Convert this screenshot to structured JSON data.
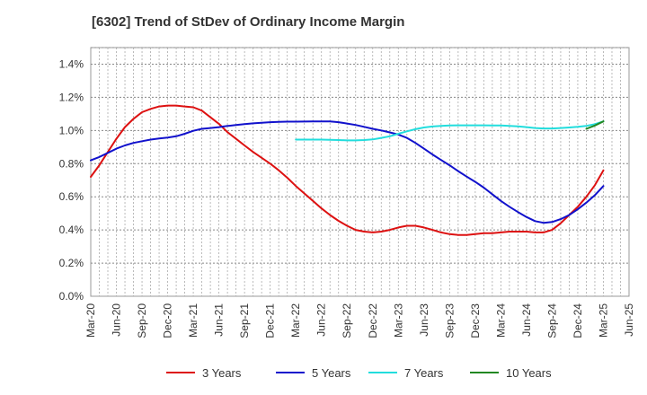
{
  "chart_data": {
    "type": "line",
    "title": "[6302]  Trend of StDev of Ordinary Income Margin",
    "xlabel": "",
    "ylabel": "",
    "x_ticks": [
      "Mar-20",
      "Jun-20",
      "Sep-20",
      "Dec-20",
      "Mar-21",
      "Jun-21",
      "Sep-21",
      "Dec-21",
      "Mar-22",
      "Jun-22",
      "Sep-22",
      "Dec-22",
      "Mar-23",
      "Jun-23",
      "Sep-23",
      "Dec-23",
      "Mar-24",
      "Jun-24",
      "Sep-24",
      "Dec-24",
      "Mar-25",
      "Jun-25"
    ],
    "y_ticks": [
      "0.0%",
      "0.2%",
      "0.4%",
      "0.6%",
      "0.8%",
      "1.0%",
      "1.2%",
      "1.4%"
    ],
    "ylim": [
      0,
      1.5
    ],
    "grid": true,
    "legend_position": "bottom",
    "series": [
      {
        "name": "3 Years",
        "color": "#dd1111",
        "x": [
          "Mar-20",
          "Apr-20",
          "May-20",
          "Jun-20",
          "Jul-20",
          "Aug-20",
          "Sep-20",
          "Oct-20",
          "Nov-20",
          "Dec-20",
          "Jan-21",
          "Feb-21",
          "Mar-21",
          "Apr-21",
          "May-21",
          "Jun-21",
          "Jul-21",
          "Aug-21",
          "Sep-21",
          "Oct-21",
          "Nov-21",
          "Dec-21",
          "Jan-22",
          "Feb-22",
          "Mar-22",
          "Apr-22",
          "May-22",
          "Jun-22",
          "Jul-22",
          "Aug-22",
          "Sep-22",
          "Oct-22",
          "Nov-22",
          "Dec-22",
          "Jan-23",
          "Feb-23",
          "Mar-23",
          "Apr-23",
          "May-23",
          "Jun-23",
          "Jul-23",
          "Aug-23",
          "Sep-23",
          "Oct-23",
          "Nov-23",
          "Dec-23",
          "Jan-24",
          "Feb-24",
          "Mar-24",
          "Apr-24",
          "May-24",
          "Jun-24",
          "Jul-24",
          "Aug-24",
          "Sep-24",
          "Oct-24",
          "Nov-24",
          "Dec-24",
          "Jan-25",
          "Feb-25",
          "Mar-25"
        ],
        "values": [
          0.72,
          0.79,
          0.87,
          0.95,
          1.02,
          1.07,
          1.11,
          1.13,
          1.145,
          1.15,
          1.15,
          1.145,
          1.14,
          1.12,
          1.08,
          1.04,
          0.99,
          0.95,
          0.91,
          0.87,
          0.835,
          0.8,
          0.76,
          0.715,
          0.665,
          0.62,
          0.575,
          0.53,
          0.49,
          0.455,
          0.425,
          0.4,
          0.39,
          0.385,
          0.39,
          0.4,
          0.415,
          0.425,
          0.425,
          0.415,
          0.4,
          0.385,
          0.375,
          0.37,
          0.37,
          0.375,
          0.38,
          0.38,
          0.385,
          0.39,
          0.39,
          0.39,
          0.385,
          0.385,
          0.4,
          0.44,
          0.49,
          0.54,
          0.6,
          0.67,
          0.76
        ]
      },
      {
        "name": "5 Years",
        "color": "#1111cc",
        "x": [
          "Mar-20",
          "Apr-20",
          "May-20",
          "Jun-20",
          "Jul-20",
          "Aug-20",
          "Sep-20",
          "Oct-20",
          "Nov-20",
          "Dec-20",
          "Jan-21",
          "Feb-21",
          "Mar-21",
          "Apr-21",
          "May-21",
          "Jun-21",
          "Jul-21",
          "Aug-21",
          "Sep-21",
          "Oct-21",
          "Nov-21",
          "Dec-21",
          "Jan-22",
          "Feb-22",
          "Mar-22",
          "Apr-22",
          "May-22",
          "Jun-22",
          "Jul-22",
          "Aug-22",
          "Sep-22",
          "Oct-22",
          "Nov-22",
          "Dec-22",
          "Jan-23",
          "Feb-23",
          "Mar-23",
          "Apr-23",
          "May-23",
          "Jun-23",
          "Jul-23",
          "Aug-23",
          "Sep-23",
          "Oct-23",
          "Nov-23",
          "Dec-23",
          "Jan-24",
          "Feb-24",
          "Mar-24",
          "Apr-24",
          "May-24",
          "Jun-24",
          "Jul-24",
          "Aug-24",
          "Sep-24",
          "Oct-24",
          "Nov-24",
          "Dec-24",
          "Jan-25",
          "Feb-25",
          "Mar-25"
        ],
        "values": [
          0.82,
          0.84,
          0.865,
          0.89,
          0.91,
          0.925,
          0.935,
          0.945,
          0.952,
          0.957,
          0.965,
          0.98,
          0.998,
          1.01,
          1.015,
          1.02,
          1.027,
          1.033,
          1.038,
          1.043,
          1.047,
          1.05,
          1.052,
          1.053,
          1.053,
          1.054,
          1.055,
          1.055,
          1.055,
          1.05,
          1.042,
          1.033,
          1.022,
          1.01,
          1.0,
          0.988,
          0.975,
          0.955,
          0.925,
          0.89,
          0.855,
          0.822,
          0.79,
          0.755,
          0.722,
          0.69,
          0.655,
          0.615,
          0.575,
          0.54,
          0.508,
          0.478,
          0.453,
          0.443,
          0.448,
          0.465,
          0.49,
          0.525,
          0.565,
          0.61,
          0.665
        ]
      },
      {
        "name": "7 Years",
        "color": "#22dddd",
        "x": [
          "Mar-22",
          "Apr-22",
          "May-22",
          "Jun-22",
          "Jul-22",
          "Aug-22",
          "Sep-22",
          "Oct-22",
          "Nov-22",
          "Dec-22",
          "Jan-23",
          "Feb-23",
          "Mar-23",
          "Apr-23",
          "May-23",
          "Jun-23",
          "Jul-23",
          "Aug-23",
          "Sep-23",
          "Oct-23",
          "Nov-23",
          "Dec-23",
          "Jan-24",
          "Feb-24",
          "Mar-24",
          "Apr-24",
          "May-24",
          "Jun-24",
          "Jul-24",
          "Aug-24",
          "Sep-24",
          "Oct-24",
          "Nov-24",
          "Dec-24",
          "Jan-25",
          "Feb-25",
          "Mar-25"
        ],
        "values": [
          0.945,
          0.945,
          0.945,
          0.945,
          0.944,
          0.942,
          0.94,
          0.94,
          0.942,
          0.946,
          0.955,
          0.965,
          0.98,
          0.995,
          1.008,
          1.018,
          1.024,
          1.028,
          1.03,
          1.031,
          1.031,
          1.031,
          1.031,
          1.03,
          1.03,
          1.028,
          1.025,
          1.02,
          1.015,
          1.012,
          1.012,
          1.015,
          1.018,
          1.022,
          1.028,
          1.038,
          1.055
        ]
      },
      {
        "name": "10 Years",
        "color": "#228822",
        "x": [
          "Jan-25",
          "Feb-25",
          "Mar-25"
        ],
        "values": [
          1.01,
          1.03,
          1.055
        ]
      }
    ]
  }
}
